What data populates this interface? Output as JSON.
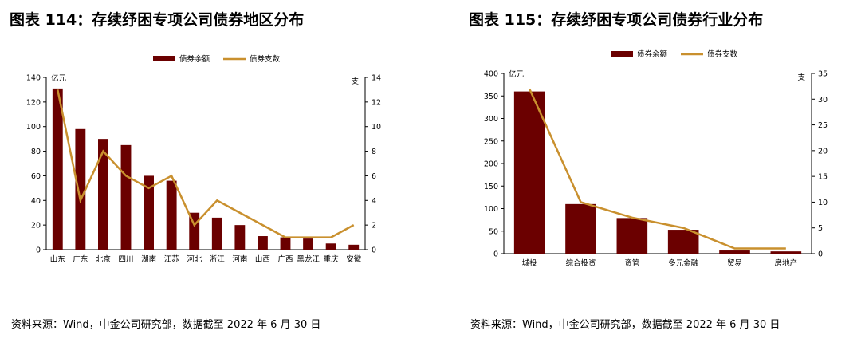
{
  "page": {
    "title_left": "图表 114：存续纾困专项公司债券地区分布",
    "title_right": "图表 115：存续纾困专项公司债券行业分布",
    "source_left": "资料来源：Wind，中金公司研究部，数据截至 2022 年 6 月 30 日",
    "source_right": "资料来源：Wind，中金公司研究部，数据截至 2022 年 6 月 30 日"
  },
  "colors": {
    "bar": "#6b0000",
    "line": "#c9902e",
    "axis": "#000000"
  },
  "chart_data": [
    {
      "type": "bar+line",
      "title": "",
      "categories": [
        "山东",
        "广东",
        "北京",
        "四川",
        "湖南",
        "江苏",
        "河北",
        "浙江",
        "河南",
        "山西",
        "广西",
        "黑龙江",
        "重庆",
        "安徽"
      ],
      "series": [
        {
          "name": "债券余额",
          "type": "bar",
          "axis": "left",
          "values": [
            131,
            98,
            90,
            85,
            60,
            56,
            30,
            26,
            20,
            11,
            10,
            9,
            5,
            4
          ]
        },
        {
          "name": "债券支数",
          "type": "line",
          "axis": "right",
          "values": [
            13,
            4,
            8,
            6,
            5,
            6,
            2,
            4,
            3,
            2,
            1,
            1,
            1,
            2
          ]
        }
      ],
      "y_left": {
        "label": "亿元",
        "min": 0,
        "max": 140,
        "ticks": [
          0,
          20,
          40,
          60,
          80,
          100,
          120,
          140
        ]
      },
      "y_right": {
        "label": "支",
        "min": 0,
        "max": 14,
        "ticks": [
          0,
          2,
          4,
          6,
          8,
          10,
          12,
          14
        ]
      },
      "legend": "top-center",
      "grid": false
    },
    {
      "type": "bar+line",
      "title": "",
      "categories": [
        "城投",
        "综合投资",
        "资管",
        "多元金融",
        "贸易",
        "房地产"
      ],
      "series": [
        {
          "name": "债券余额",
          "type": "bar",
          "axis": "left",
          "values": [
            360,
            110,
            79,
            53,
            7,
            5
          ]
        },
        {
          "name": "债券支数",
          "type": "line",
          "axis": "right",
          "values": [
            32,
            10,
            7,
            5,
            1,
            1
          ]
        }
      ],
      "y_left": {
        "label": "亿元",
        "min": 0,
        "max": 400,
        "ticks": [
          0,
          50,
          100,
          150,
          200,
          250,
          300,
          350,
          400
        ]
      },
      "y_right": {
        "label": "支",
        "min": 0,
        "max": 35,
        "ticks": [
          0,
          5,
          10,
          15,
          20,
          25,
          30,
          35
        ]
      },
      "legend": "top-center",
      "grid": false
    }
  ]
}
